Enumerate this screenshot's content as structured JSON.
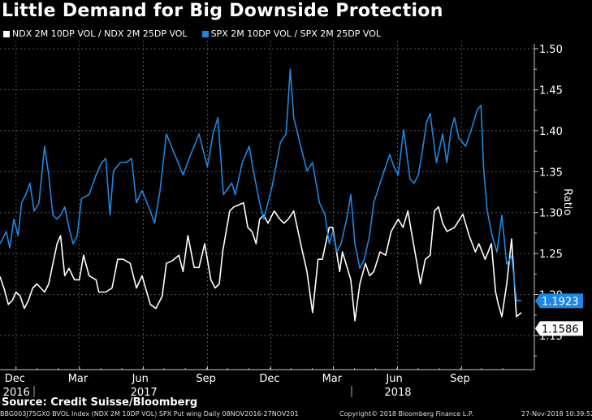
{
  "chart_data": {
    "type": "line",
    "title": "Little Demand for Big Downside Protection",
    "xlabel": "",
    "ylabel": "Ratio",
    "x_unit": "days since 2016-11-08",
    "x_range": [
      "2016-11-08",
      "2018-11-27"
    ],
    "x_days_total": 749,
    "ylim": [
      1.105,
      1.51
    ],
    "yticks": [
      1.15,
      1.2,
      1.25,
      1.3,
      1.35,
      1.4,
      1.45,
      1.5
    ],
    "ytick_labels": [
      "1.15",
      "1.20",
      "1.25",
      "1.30",
      "1.35",
      "1.40",
      "1.45",
      "1.50"
    ],
    "xticks": [
      {
        "day": 23,
        "label": "Dec",
        "year": "2016"
      },
      {
        "day": 114,
        "label": "Mar",
        "year": ""
      },
      {
        "day": 206,
        "label": "Jun",
        "year": "2017"
      },
      {
        "day": 298,
        "label": "Sep",
        "year": ""
      },
      {
        "day": 389,
        "label": "Dec",
        "year": ""
      },
      {
        "day": 479,
        "label": "Mar",
        "year": ""
      },
      {
        "day": 571,
        "label": "Jun",
        "year": "2018"
      },
      {
        "day": 663,
        "label": "Sep",
        "year": ""
      }
    ],
    "grid": true,
    "legend_position": "top-left",
    "series": [
      {
        "name": "NDX 2M 10DP VOL / NDX 2M 25DP VOL",
        "color": "#ffffff",
        "last_value": "1.1586",
        "days": [
          0,
          6,
          12,
          18,
          23,
          29,
          35,
          41,
          47,
          53,
          64,
          70,
          82,
          87,
          93,
          99,
          107,
          114,
          120,
          128,
          138,
          142,
          152,
          161,
          169,
          177,
          187,
          196,
          204,
          216,
          224,
          233,
          239,
          247,
          257,
          263,
          270,
          279,
          286,
          294,
          303,
          309,
          315,
          320,
          330,
          336,
          350,
          356,
          362,
          368,
          373,
          379,
          385,
          394,
          402,
          408,
          414,
          422,
          432,
          441,
          449,
          457,
          463,
          473,
          478,
          488,
          492,
          504,
          510,
          517,
          525,
          531,
          537,
          546,
          554,
          562,
          572,
          579,
          586,
          592,
          598,
          604,
          611,
          618,
          624,
          630,
          636,
          642,
          653,
          665,
          674,
          683,
          688,
          697,
          706,
          712,
          716,
          721,
          728,
          735,
          742,
          749
        ],
        "values": [
          1.222,
          1.207,
          1.188,
          1.193,
          1.203,
          1.198,
          1.183,
          1.193,
          1.208,
          1.213,
          1.203,
          1.213,
          1.262,
          1.272,
          1.223,
          1.232,
          1.218,
          1.218,
          1.248,
          1.223,
          1.218,
          1.203,
          1.203,
          1.208,
          1.243,
          1.243,
          1.238,
          1.208,
          1.223,
          1.188,
          1.183,
          1.198,
          1.238,
          1.241,
          1.248,
          1.228,
          1.272,
          1.233,
          1.233,
          1.262,
          1.218,
          1.208,
          1.213,
          1.253,
          1.302,
          1.307,
          1.312,
          1.282,
          1.277,
          1.262,
          1.292,
          1.297,
          1.287,
          1.302,
          1.292,
          1.287,
          1.292,
          1.302,
          1.262,
          1.228,
          1.178,
          1.243,
          1.243,
          1.282,
          1.282,
          1.228,
          1.252,
          1.218,
          1.168,
          1.213,
          1.238,
          1.223,
          1.228,
          1.252,
          1.248,
          1.277,
          1.292,
          1.282,
          1.302,
          1.272,
          1.243,
          1.213,
          1.243,
          1.248,
          1.302,
          1.307,
          1.287,
          1.277,
          1.282,
          1.298,
          1.272,
          1.252,
          1.262,
          1.243,
          1.262,
          1.203,
          1.188,
          1.173,
          1.213,
          1.268,
          1.173,
          1.178,
          1.158,
          1.1586
        ]
      },
      {
        "name": "SPX 2M 10DP VOL / SPX 2M 25DP VOL",
        "color": "#1f87e0",
        "last_value": "1.1923",
        "days": [
          0,
          9,
          14,
          20,
          26,
          31,
          37,
          43,
          49,
          56,
          64,
          70,
          76,
          82,
          87,
          93,
          99,
          105,
          111,
          117,
          128,
          138,
          146,
          152,
          158,
          163,
          173,
          181,
          189,
          196,
          204,
          216,
          222,
          230,
          239,
          251,
          263,
          274,
          286,
          298,
          306,
          313,
          321,
          333,
          338,
          348,
          358,
          364,
          373,
          379,
          391,
          403,
          411,
          417,
          422,
          432,
          441,
          449,
          459,
          467,
          473,
          478,
          484,
          490,
          498,
          504,
          510,
          517,
          523,
          531,
          537,
          548,
          560,
          566,
          572,
          580,
          589,
          595,
          601,
          607,
          613,
          618,
          627,
          636,
          642,
          648,
          653,
          659,
          669,
          677,
          686,
          691,
          695,
          700,
          707,
          714,
          721,
          728,
          735,
          742,
          749
        ],
        "values": [
          1.262,
          1.277,
          1.257,
          1.292,
          1.272,
          1.312,
          1.322,
          1.336,
          1.302,
          1.312,
          1.381,
          1.346,
          1.297,
          1.292,
          1.297,
          1.307,
          1.282,
          1.262,
          1.272,
          1.317,
          1.322,
          1.346,
          1.361,
          1.366,
          1.297,
          1.351,
          1.361,
          1.361,
          1.366,
          1.312,
          1.327,
          1.302,
          1.287,
          1.327,
          1.396,
          1.371,
          1.346,
          1.371,
          1.396,
          1.356,
          1.396,
          1.416,
          1.322,
          1.336,
          1.322,
          1.361,
          1.381,
          1.351,
          1.312,
          1.292,
          1.332,
          1.386,
          1.396,
          1.475,
          1.416,
          1.381,
          1.351,
          1.361,
          1.312,
          1.297,
          1.262,
          1.277,
          1.252,
          1.262,
          1.292,
          1.322,
          1.262,
          1.232,
          1.242,
          1.272,
          1.312,
          1.341,
          1.371,
          1.356,
          1.346,
          1.401,
          1.341,
          1.336,
          1.346,
          1.376,
          1.411,
          1.421,
          1.361,
          1.396,
          1.361,
          1.401,
          1.416,
          1.391,
          1.381,
          1.401,
          1.426,
          1.431,
          1.351,
          1.302,
          1.272,
          1.252,
          1.297,
          1.237,
          1.247,
          1.193,
          1.1923
        ]
      }
    ]
  },
  "source": "Source: Credit Suisse/Bloomberg",
  "footer": {
    "ticker": "BBG003J75GX0 BVOL Index (NDX 2M 10DP VOL) SPX Put wing  Daily 08NOV2016-27NOV201",
    "copyright": "Copyright© 2018 Bloomberg Finance L.P.",
    "timestamp": "27-Nov-2018 10:39:52"
  }
}
